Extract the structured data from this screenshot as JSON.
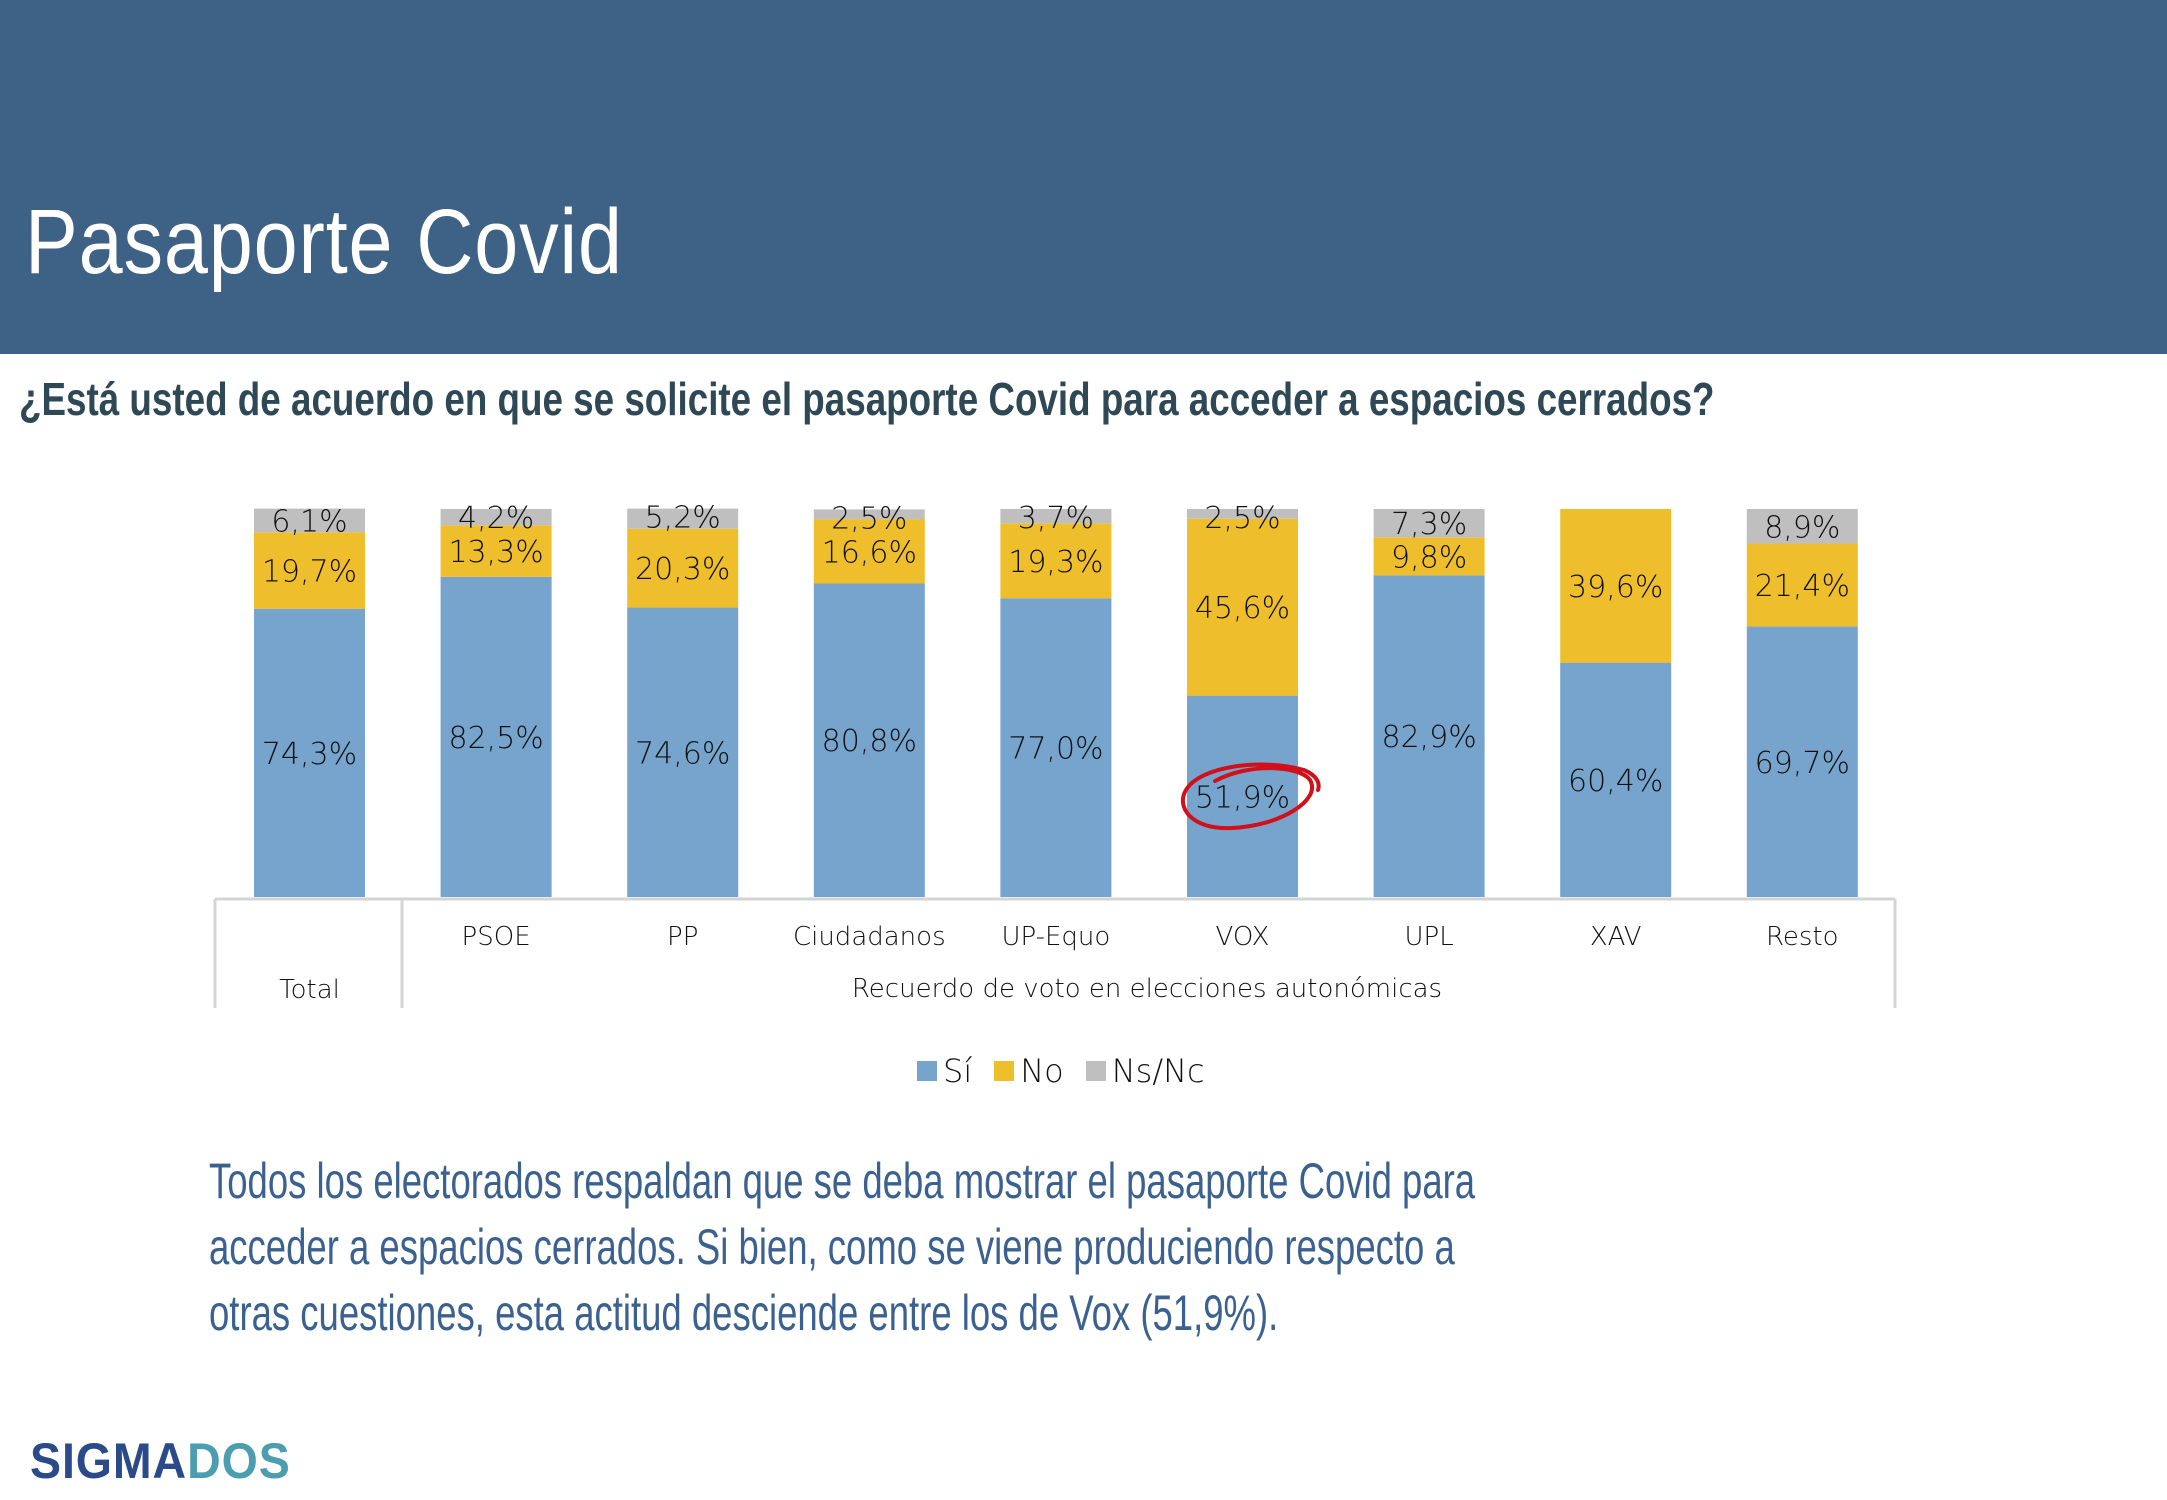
{
  "header": {
    "title": "Pasaporte Covid",
    "question": "¿Está usted de acuerdo en que se solicite el pasaporte Covid para acceder a espacios cerrados?"
  },
  "chart_data": {
    "type": "bar",
    "stacked": true,
    "percent_stacked": true,
    "title": "",
    "xlabel": "Recuerdo de voto en elecciones autonómicas",
    "ylabel": "",
    "ylim": [
      0,
      100
    ],
    "grid": false,
    "legend_position": "bottom",
    "categories": [
      "Total",
      "PSOE",
      "PP",
      "Ciudadanos",
      "UP-Equo",
      "VOX",
      "UPL",
      "XAV",
      "Resto"
    ],
    "group_labels": [
      {
        "label": "Total",
        "categories": [
          "Total"
        ]
      },
      {
        "label": "Recuerdo de voto en elecciones autonómicas",
        "categories": [
          "PSOE",
          "PP",
          "Ciudadanos",
          "UP-Equo",
          "VOX",
          "UPL",
          "XAV",
          "Resto"
        ]
      }
    ],
    "series": [
      {
        "name": "Sí",
        "color": "#76a4cc",
        "values": [
          74.3,
          82.5,
          74.6,
          80.8,
          77.0,
          51.9,
          82.9,
          60.4,
          69.7
        ],
        "labels": [
          "74,3%",
          "82,5%",
          "74,6%",
          "80,8%",
          "77,0%",
          "51,9%",
          "82,9%",
          "60,4%",
          "69,7%"
        ]
      },
      {
        "name": "No",
        "color": "#efbe2d",
        "values": [
          19.7,
          13.3,
          20.3,
          16.6,
          19.3,
          45.6,
          9.8,
          39.6,
          21.4
        ],
        "labels": [
          "19,7%",
          "13,3%",
          "20,3%",
          "16,6%",
          "19,3%",
          "45,6%",
          "9,8%",
          "39,6%",
          "21,4%"
        ]
      },
      {
        "name": "Ns/Nc",
        "color": "#bfbfbf",
        "values": [
          6.1,
          4.2,
          5.2,
          2.5,
          3.7,
          2.5,
          7.3,
          0,
          8.9
        ],
        "labels": [
          "6,1%",
          "4,2%",
          "5,2%",
          "2,5%",
          "3,7%",
          "2,5%",
          "7,3%",
          "",
          "8,9%"
        ]
      }
    ],
    "annotations": [
      {
        "type": "hand-drawn-circle",
        "target_category": "VOX",
        "target_series": "Sí",
        "text": "51,9%",
        "color": "#d0111b"
      }
    ]
  },
  "legend": [
    {
      "label": "Sí",
      "color": "#76a4cc"
    },
    {
      "label": "No",
      "color": "#efbe2d"
    },
    {
      "label": "Ns/Nc",
      "color": "#bfbfbf"
    }
  ],
  "body": {
    "lines": [
      "Todos los electorados respaldan que se deba mostrar el pasaporte Covid para",
      "acceder a espacios cerrados. Si bien, como se viene produciendo respecto a",
      "otras cuestiones, esta actitud desciende entre los de Vox (51,9%)."
    ]
  },
  "logo": {
    "part1": "SIGMA",
    "part2": "DOS"
  }
}
